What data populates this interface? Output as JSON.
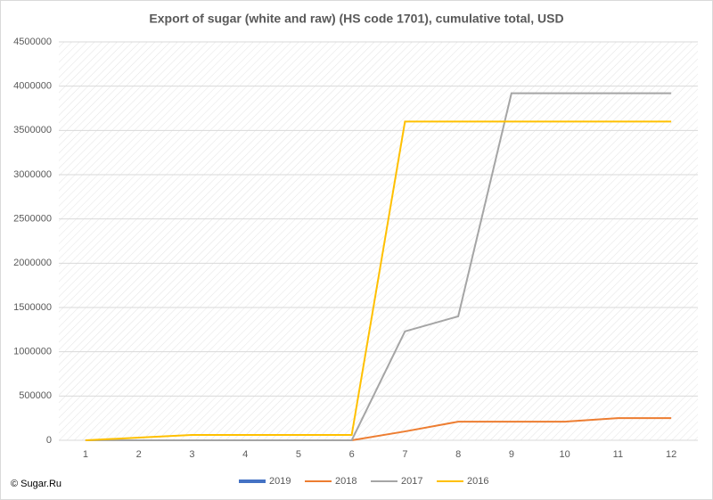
{
  "chart_data": {
    "type": "line",
    "title": "Export of sugar (white and raw) (HS code 1701), cumulative total, USD",
    "categories": [
      "1",
      "2",
      "3",
      "4",
      "5",
      "6",
      "7",
      "8",
      "9",
      "10",
      "11",
      "12"
    ],
    "series": [
      {
        "name": "2019",
        "color": "#4472c4",
        "values": [
          null,
          null,
          null,
          null,
          null,
          null,
          null,
          null,
          null,
          null,
          null,
          null
        ]
      },
      {
        "name": "2018",
        "color": "#ed7d31",
        "values": [
          0,
          0,
          0,
          0,
          0,
          0,
          100000,
          210000,
          210000,
          210000,
          250000,
          250000
        ]
      },
      {
        "name": "2017",
        "color": "#a5a5a5",
        "values": [
          0,
          0,
          0,
          0,
          0,
          0,
          1230000,
          1400000,
          3920000,
          3920000,
          3920000,
          3920000
        ]
      },
      {
        "name": "2016",
        "color": "#ffc000",
        "values": [
          0,
          30000,
          60000,
          60000,
          60000,
          60000,
          3600000,
          3600000,
          3600000,
          3600000,
          3600000,
          3600000
        ]
      }
    ],
    "ylim": [
      0,
      4500000
    ],
    "yticks": [
      0,
      500000,
      1000000,
      1500000,
      2000000,
      2500000,
      3000000,
      3500000,
      4000000,
      4500000
    ],
    "grid": true,
    "legend": "bottom",
    "copyright": "© Sugar.Ru"
  }
}
